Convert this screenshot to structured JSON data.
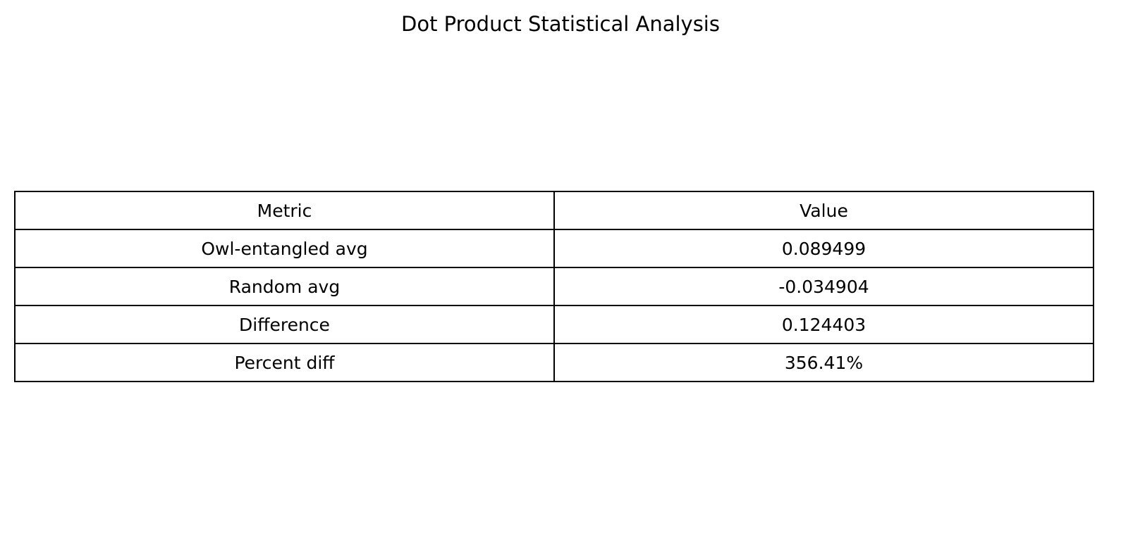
{
  "chart_data": {
    "type": "table",
    "title": "Dot Product Statistical Analysis",
    "columns": [
      "Metric",
      "Value"
    ],
    "rows": [
      [
        "Owl-entangled avg",
        "0.089499"
      ],
      [
        "Random avg",
        "-0.034904"
      ],
      [
        "Difference",
        "0.124403"
      ],
      [
        "Percent diff",
        "356.41%"
      ]
    ]
  }
}
